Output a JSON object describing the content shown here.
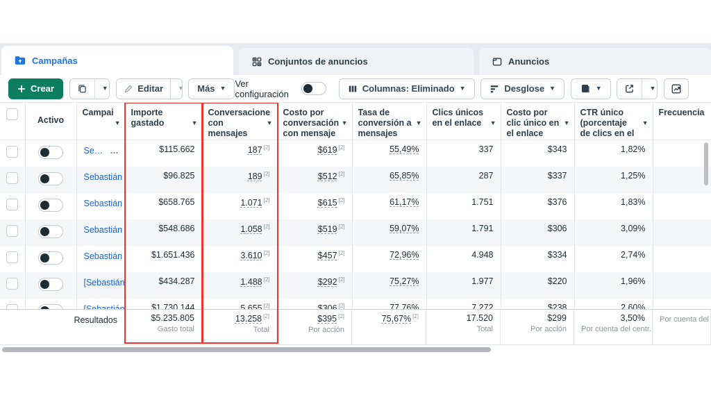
{
  "tabs": {
    "campaigns": "Campañas",
    "ad_sets": "Conjuntos de anuncios",
    "ads": "Anuncios"
  },
  "toolbar": {
    "create": "Crear",
    "edit": "Editar",
    "more": "Más",
    "view_settings": "Ver configuración",
    "columns": "Columnas: Eliminado",
    "breakdown": "Desglose"
  },
  "table": {
    "headers": {
      "active": "Activo",
      "campaign": "Campai",
      "spend": "Importe gastado",
      "conversations": "Conversacione con mensajes iniciadas",
      "cost_per_conversation": "Costo por conversación con mensaje",
      "conversion_rate": "Tasa de conversión a mensajes",
      "unique_link_clicks": "Clics únicos en el enlace",
      "cost_per_unique_click": "Costo por clic único en el enlace",
      "unique_ctr": "CTR único (porcentaje de clics en el",
      "frequency": "Frecuencia"
    },
    "footnote": "[2]",
    "rows": [
      {
        "name": "Se…",
        "menu": "…",
        "spend": "$115.662",
        "conversations": "187",
        "cost_per_conversation": "$619",
        "conversion_rate": "55,49%",
        "unique_link_clicks": "337",
        "cost_per_unique_click": "$343",
        "unique_ctr": "1,82%",
        "frequency": ""
      },
      {
        "name": "Sebastián /…",
        "spend": "$96.825",
        "conversations": "189",
        "cost_per_conversation": "$512",
        "conversion_rate": "65,85%",
        "unique_link_clicks": "287",
        "cost_per_unique_click": "$337",
        "unique_ctr": "1,25%",
        "frequency": ""
      },
      {
        "name": "Sebastián /…",
        "spend": "$658.765",
        "conversations": "1.071",
        "cost_per_conversation": "$615",
        "conversion_rate": "61,17%",
        "unique_link_clicks": "1.751",
        "cost_per_unique_click": "$376",
        "unique_ctr": "1,83%",
        "frequency": ""
      },
      {
        "name": "Sebastián /…",
        "spend": "$548.686",
        "conversations": "1.058",
        "cost_per_conversation": "$519",
        "conversion_rate": "59,07%",
        "unique_link_clicks": "1.791",
        "cost_per_unique_click": "$306",
        "unique_ctr": "3,09%",
        "frequency": ""
      },
      {
        "name": "Sebastián /…",
        "spend": "$1.651.436",
        "conversations": "3.610",
        "cost_per_conversation": "$457",
        "conversion_rate": "72,96%",
        "unique_link_clicks": "4.948",
        "cost_per_unique_click": "$334",
        "unique_ctr": "2,74%",
        "frequency": ""
      },
      {
        "name": "[Sebastián]…",
        "spend": "$434.287",
        "conversations": "1.488",
        "cost_per_conversation": "$292",
        "conversion_rate": "75,27%",
        "unique_link_clicks": "1.977",
        "cost_per_unique_click": "$220",
        "unique_ctr": "1,96%",
        "frequency": ""
      },
      {
        "name": "[Sebastián]",
        "spend": "$1.730.144",
        "conversations": "5.655",
        "cost_per_conversation": "$306",
        "conversion_rate": "77,76%",
        "unique_link_clicks": "7.272",
        "cost_per_unique_click": "$238",
        "unique_ctr": "2,60%",
        "frequency": ""
      }
    ],
    "results": {
      "label": "Resultados",
      "spend": {
        "value": "$5.235.805",
        "caption": "Gasto total"
      },
      "conversations": {
        "value": "13.258",
        "caption": "Total"
      },
      "cost_per_conversation": {
        "value": "$395",
        "caption": "Por acción"
      },
      "conversion_rate": {
        "value": "75,67%",
        "caption": ""
      },
      "unique_link_clicks": {
        "value": "17.520",
        "caption": "Total"
      },
      "cost_per_unique_click": {
        "value": "$299",
        "caption": "Por acción"
      },
      "unique_ctr": {
        "value": "3,50%",
        "caption": "Por cuenta del centr..."
      },
      "frequency": {
        "value": "",
        "caption": "Por cuenta del cent..."
      }
    }
  },
  "colors": {
    "accent_blue": "#1b74e4",
    "brand_green": "#0c7d5f",
    "highlight_red": "#e23a2e"
  }
}
